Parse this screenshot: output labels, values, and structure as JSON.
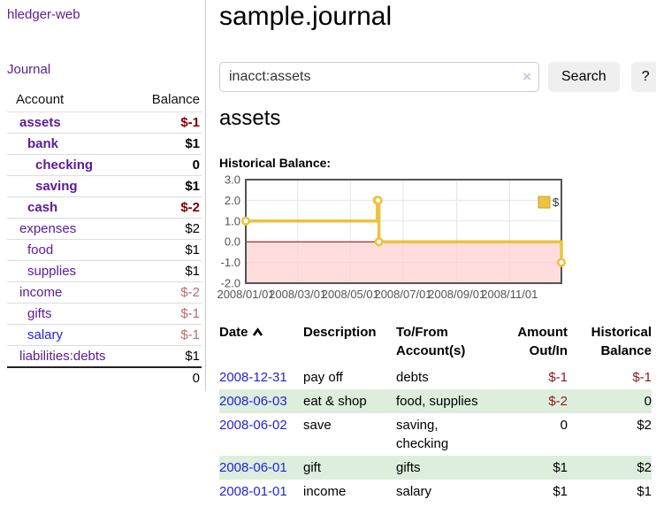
{
  "sidebar": {
    "app_title": "hledger-web",
    "journal_label": "Journal",
    "accounts_table": {
      "header_account": "Account",
      "header_balance": "Balance",
      "rows": [
        {
          "name": "assets",
          "balance": "$-1",
          "indent": 1,
          "bold": true,
          "unvisited": false
        },
        {
          "name": "bank",
          "balance": "$1",
          "indent": 2,
          "bold": true,
          "unvisited": false
        },
        {
          "name": "checking",
          "balance": "0",
          "indent": 3,
          "bold": true,
          "unvisited": false
        },
        {
          "name": "saving",
          "balance": "$1",
          "indent": 3,
          "bold": true,
          "unvisited": false
        },
        {
          "name": "cash",
          "balance": "$-2",
          "indent": 2,
          "bold": true,
          "unvisited": false
        },
        {
          "name": "expenses",
          "balance": "$2",
          "indent": 1,
          "bold": false,
          "unvisited": false
        },
        {
          "name": "food",
          "balance": "$1",
          "indent": 2,
          "bold": false,
          "unvisited": false
        },
        {
          "name": "supplies",
          "balance": "$1",
          "indent": 2,
          "bold": false,
          "unvisited": false
        },
        {
          "name": "income",
          "balance": "$-2",
          "indent": 1,
          "bold": false,
          "unvisited": false
        },
        {
          "name": "gifts",
          "balance": "$-1",
          "indent": 2,
          "bold": false,
          "unvisited": false
        },
        {
          "name": "salary",
          "balance": "$-1",
          "indent": 2,
          "bold": false,
          "unvisited": true
        },
        {
          "name": "liabilities:debts",
          "balance": "$1",
          "indent": 1,
          "bold": false,
          "unvisited": false
        }
      ],
      "total": "0"
    }
  },
  "main": {
    "title": "sample.journal",
    "search": {
      "value": "inacct:assets",
      "clear_icon": "×",
      "button_label": "Search",
      "help_label": "?"
    },
    "account_heading": "assets",
    "chart_label": "Historical Balance:",
    "register": {
      "headers": {
        "date": "Date",
        "sort_icon": "chevron-up",
        "description": "Description",
        "tofrom_line1": "To/From",
        "tofrom_line2": "Account(s)",
        "amount_line1": "Amount",
        "amount_line2": "Out/In",
        "historical_line1": "Historical",
        "historical_line2": "Balance"
      },
      "rows": [
        {
          "date": "2008-12-31",
          "description": "pay off",
          "accounts": "debts",
          "amount": "$-1",
          "balance": "$-1"
        },
        {
          "date": "2008-06-03",
          "description": "eat & shop",
          "accounts": "food, supplies",
          "amount": "$-2",
          "balance": "0"
        },
        {
          "date": "2008-06-02",
          "description": "save",
          "accounts": "saving, checking",
          "amount": "0",
          "balance": "$2"
        },
        {
          "date": "2008-06-01",
          "description": "gift",
          "accounts": "gifts",
          "amount": "$1",
          "balance": "$2"
        },
        {
          "date": "2008-01-01",
          "description": "income",
          "accounts": "salary",
          "amount": "$1",
          "balance": "$1"
        }
      ]
    }
  },
  "chart_data": {
    "type": "line",
    "title": "Historical Balance:",
    "step": true,
    "series": [
      {
        "name": "$",
        "color": "#edc240",
        "points": [
          [
            "2008-01-01",
            1
          ],
          [
            "2008-06-01",
            2
          ],
          [
            "2008-06-02",
            2
          ],
          [
            "2008-06-03",
            0
          ],
          [
            "2008-12-31",
            -1
          ]
        ]
      }
    ],
    "x_range": [
      "2008-01-01",
      "2008-12-31"
    ],
    "x_ticks": [
      "2008/01/01",
      "2008/03/01",
      "2008/05/01",
      "2008/07/01",
      "2008/09/01",
      "2008/11/01"
    ],
    "y_ticks": [
      3.0,
      2.0,
      1.0,
      0.0,
      -1.0,
      -2.0
    ],
    "ylim": [
      -2,
      3
    ],
    "grid": true,
    "legend_position": "top-right",
    "negative_region_color": "#ffd0d0",
    "zero_line_color": "#8b0000",
    "axis_label_color": "#545454",
    "grid_color": "#e5e5e5",
    "border_color": "#545454"
  },
  "colors": {
    "accent_purple": "#5a1b9a",
    "link_blue": "#2323dd",
    "negative_strong": "#7f0000",
    "negative_soft": "#b96b6b",
    "negative_table": "#8b1a1a",
    "row_stripe_green": "#ddeedd",
    "series_yellow": "#edc240"
  }
}
